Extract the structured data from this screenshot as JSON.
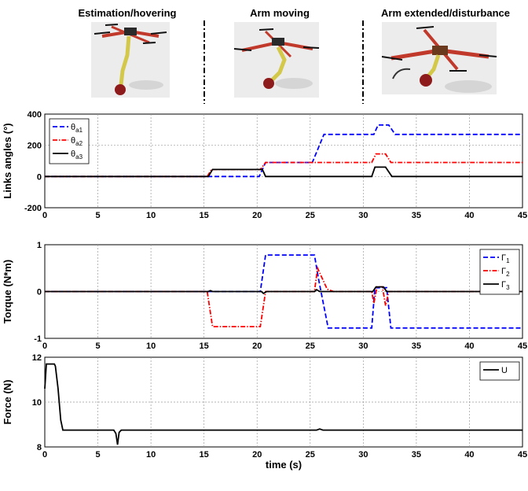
{
  "phases": {
    "labels": [
      "Estimation/hovering",
      "Arm moving",
      "Arm extended/disturbance"
    ],
    "divider_times": [
      20.5,
      30.5
    ],
    "drone_colors": {
      "frame": "#2a2a2a",
      "arms": "#c0392b",
      "arm_links": "#d4c84a",
      "gripper": "#8e1b1b",
      "rotor": "#111111"
    }
  },
  "chart_data": [
    {
      "type": "line",
      "xlabel": "",
      "ylabel": "Links angles (°)",
      "xlim": [
        0,
        45
      ],
      "ylim": [
        -200,
        400
      ],
      "xticks": [
        0,
        5,
        10,
        15,
        20,
        25,
        30,
        35,
        40,
        45
      ],
      "yticks": [
        -200,
        0,
        200,
        400
      ],
      "grid": true,
      "legend": {
        "position": "top-left",
        "items": [
          {
            "main": "θ",
            "sub": "a1"
          },
          {
            "main": "θ",
            "sub": "a2"
          },
          {
            "main": "θ",
            "sub": "a3"
          }
        ]
      },
      "series": [
        {
          "color": "#0000ff",
          "dash": "dashed",
          "x": [
            0,
            15.3,
            20.2,
            20.8,
            25.2,
            26.3,
            31,
            31.4,
            32.4,
            33,
            45
          ],
          "y": [
            0,
            0,
            0,
            90,
            90,
            270,
            270,
            330,
            330,
            270,
            270
          ]
        },
        {
          "color": "#ff0000",
          "dash": "dashdot",
          "x": [
            0,
            15.3,
            15.7,
            20.3,
            20.8,
            30.8,
            31.2,
            32.1,
            32.6,
            45
          ],
          "y": [
            0,
            0,
            45,
            45,
            90,
            90,
            145,
            145,
            90,
            90
          ]
        },
        {
          "color": "#000000",
          "dash": "solid",
          "x": [
            0,
            15.4,
            15.8,
            20.5,
            20.8,
            30.8,
            31.1,
            32.1,
            32.7,
            45
          ],
          "y": [
            0,
            0,
            45,
            45,
            0,
            0,
            60,
            60,
            0,
            0
          ]
        }
      ]
    },
    {
      "type": "line",
      "xlabel": "",
      "ylabel": "Torque (N*m)",
      "xlim": [
        0,
        45
      ],
      "ylim": [
        -1,
        1
      ],
      "xticks": [
        0,
        5,
        10,
        15,
        20,
        25,
        30,
        35,
        40,
        45
      ],
      "yticks": [
        -1,
        0,
        1
      ],
      "grid": true,
      "legend": {
        "position": "top-right",
        "items": [
          {
            "main": "Γ",
            "sub": "1"
          },
          {
            "main": "Γ",
            "sub": "2"
          },
          {
            "main": "Γ",
            "sub": "3"
          }
        ]
      },
      "series": [
        {
          "color": "#0000ff",
          "dash": "dashed",
          "x": [
            0,
            20.3,
            20.8,
            25.4,
            25.8,
            26.7,
            30.8,
            31.1,
            32.2,
            32.6,
            45
          ],
          "y": [
            0,
            0,
            0.78,
            0.78,
            0.25,
            -0.78,
            -0.78,
            0.08,
            0.08,
            -0.78,
            -0.78
          ]
        },
        {
          "color": "#ff0000",
          "dash": "dashdot",
          "x": [
            0,
            15.3,
            15.8,
            20.3,
            20.8,
            25.4,
            25.7,
            26.6,
            27.2,
            30.8,
            31.0,
            31.3,
            31.8,
            32.1,
            32.4,
            32.9,
            45
          ],
          "y": [
            0,
            0,
            -0.75,
            -0.75,
            0,
            0,
            0.5,
            0.05,
            0,
            0,
            -0.25,
            0.1,
            0.1,
            -0.3,
            0,
            0,
            0
          ]
        },
        {
          "color": "#000000",
          "dash": "solid",
          "x": [
            0,
            15.4,
            15.6,
            15.8,
            20.4,
            20.6,
            20.9,
            25.4,
            25.6,
            25.9,
            30.9,
            31.2,
            31.9,
            32.2,
            45
          ],
          "y": [
            0,
            0,
            0.02,
            0,
            0,
            -0.04,
            0,
            0,
            0.04,
            0,
            0,
            0.1,
            0.1,
            0,
            0
          ]
        }
      ]
    },
    {
      "type": "line",
      "xlabel": "time (s)",
      "ylabel": "Force (N)",
      "xlim": [
        0,
        45
      ],
      "ylim": [
        8,
        12
      ],
      "xticks": [
        0,
        5,
        10,
        15,
        20,
        25,
        30,
        35,
        40,
        45
      ],
      "yticks": [
        8,
        10,
        12
      ],
      "grid": true,
      "legend": {
        "position": "top-right",
        "items": [
          {
            "main": "U",
            "sub": ""
          }
        ]
      },
      "series": [
        {
          "color": "#000000",
          "dash": "solid",
          "x": [
            0,
            0.15,
            0.25,
            0.9,
            1.0,
            1.25,
            1.5,
            1.7,
            6.5,
            6.7,
            6.85,
            7.0,
            7.2,
            25.6,
            25.9,
            26.2,
            45
          ],
          "y": [
            10.6,
            11.7,
            11.7,
            11.7,
            11.6,
            10.6,
            9.2,
            8.75,
            8.75,
            8.6,
            8.1,
            8.65,
            8.75,
            8.75,
            8.8,
            8.75,
            8.75
          ]
        }
      ]
    }
  ]
}
